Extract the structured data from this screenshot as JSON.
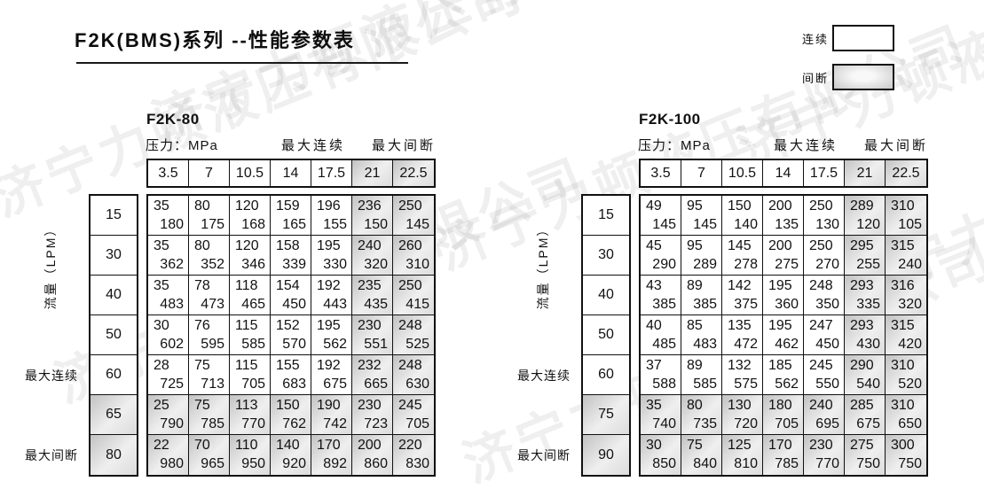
{
  "title": "F2K(BMS)系列 --性能参数表",
  "watermark": "济宁力顿液压有限公司",
  "legend": {
    "continuous": "连续",
    "intermittent": "间断"
  },
  "shared": {
    "pressure_label": "压力：MPa",
    "max_continuous_label": "最大连续",
    "max_intermittent_label": "最大间断",
    "flow_axis_label": "流量（LPM）"
  },
  "tables": [
    {
      "model": "F2K-80",
      "pressures": [
        "3.5",
        "7",
        "10.5",
        "14",
        "17.5",
        "21",
        "22.5"
      ],
      "flows": [
        "15",
        "30",
        "40",
        "50",
        "60",
        "65",
        "80"
      ],
      "rows": [
        [
          [
            "35",
            "180"
          ],
          [
            "80",
            "175"
          ],
          [
            "120",
            "168"
          ],
          [
            "159",
            "165"
          ],
          [
            "196",
            "155"
          ],
          [
            "236",
            "150"
          ],
          [
            "250",
            "145"
          ]
        ],
        [
          [
            "35",
            "362"
          ],
          [
            "80",
            "352"
          ],
          [
            "120",
            "346"
          ],
          [
            "158",
            "339"
          ],
          [
            "195",
            "330"
          ],
          [
            "240",
            "320"
          ],
          [
            "260",
            "310"
          ]
        ],
        [
          [
            "35",
            "483"
          ],
          [
            "78",
            "473"
          ],
          [
            "118",
            "465"
          ],
          [
            "154",
            "450"
          ],
          [
            "192",
            "443"
          ],
          [
            "235",
            "435"
          ],
          [
            "250",
            "415"
          ]
        ],
        [
          [
            "30",
            "602"
          ],
          [
            "76",
            "595"
          ],
          [
            "115",
            "585"
          ],
          [
            "152",
            "570"
          ],
          [
            "195",
            "562"
          ],
          [
            "230",
            "551"
          ],
          [
            "248",
            "525"
          ]
        ],
        [
          [
            "28",
            "725"
          ],
          [
            "75",
            "713"
          ],
          [
            "115",
            "705"
          ],
          [
            "155",
            "683"
          ],
          [
            "192",
            "675"
          ],
          [
            "232",
            "665"
          ],
          [
            "248",
            "630"
          ]
        ],
        [
          [
            "25",
            "790"
          ],
          [
            "75",
            "785"
          ],
          [
            "113",
            "770"
          ],
          [
            "150",
            "762"
          ],
          [
            "190",
            "742"
          ],
          [
            "230",
            "723"
          ],
          [
            "245",
            "705"
          ]
        ],
        [
          [
            "22",
            "980"
          ],
          [
            "70",
            "965"
          ],
          [
            "110",
            "950"
          ],
          [
            "140",
            "920"
          ],
          [
            "170",
            "892"
          ],
          [
            "200",
            "860"
          ],
          [
            "220",
            "830"
          ]
        ]
      ]
    },
    {
      "model": "F2K-100",
      "pressures": [
        "3.5",
        "7",
        "10.5",
        "14",
        "17.5",
        "21",
        "22.5"
      ],
      "flows": [
        "15",
        "30",
        "40",
        "50",
        "60",
        "75",
        "90"
      ],
      "rows": [
        [
          [
            "49",
            "145"
          ],
          [
            "95",
            "145"
          ],
          [
            "150",
            "140"
          ],
          [
            "200",
            "135"
          ],
          [
            "250",
            "130"
          ],
          [
            "289",
            "120"
          ],
          [
            "310",
            "105"
          ]
        ],
        [
          [
            "45",
            "290"
          ],
          [
            "95",
            "289"
          ],
          [
            "145",
            "278"
          ],
          [
            "200",
            "275"
          ],
          [
            "250",
            "270"
          ],
          [
            "295",
            "255"
          ],
          [
            "315",
            "240"
          ]
        ],
        [
          [
            "43",
            "385"
          ],
          [
            "89",
            "385"
          ],
          [
            "142",
            "375"
          ],
          [
            "195",
            "360"
          ],
          [
            "248",
            "350"
          ],
          [
            "293",
            "335"
          ],
          [
            "316",
            "320"
          ]
        ],
        [
          [
            "40",
            "485"
          ],
          [
            "85",
            "483"
          ],
          [
            "135",
            "472"
          ],
          [
            "195",
            "462"
          ],
          [
            "247",
            "450"
          ],
          [
            "293",
            "430"
          ],
          [
            "315",
            "420"
          ]
        ],
        [
          [
            "37",
            "588"
          ],
          [
            "89",
            "585"
          ],
          [
            "132",
            "575"
          ],
          [
            "185",
            "562"
          ],
          [
            "245",
            "550"
          ],
          [
            "290",
            "540"
          ],
          [
            "310",
            "520"
          ]
        ],
        [
          [
            "35",
            "740"
          ],
          [
            "80",
            "735"
          ],
          [
            "130",
            "720"
          ],
          [
            "180",
            "705"
          ],
          [
            "240",
            "695"
          ],
          [
            "285",
            "675"
          ],
          [
            "310",
            "650"
          ]
        ],
        [
          [
            "30",
            "850"
          ],
          [
            "75",
            "840"
          ],
          [
            "125",
            "810"
          ],
          [
            "170",
            "785"
          ],
          [
            "230",
            "770"
          ],
          [
            "275",
            "750"
          ],
          [
            "300",
            "750"
          ]
        ]
      ]
    }
  ]
}
